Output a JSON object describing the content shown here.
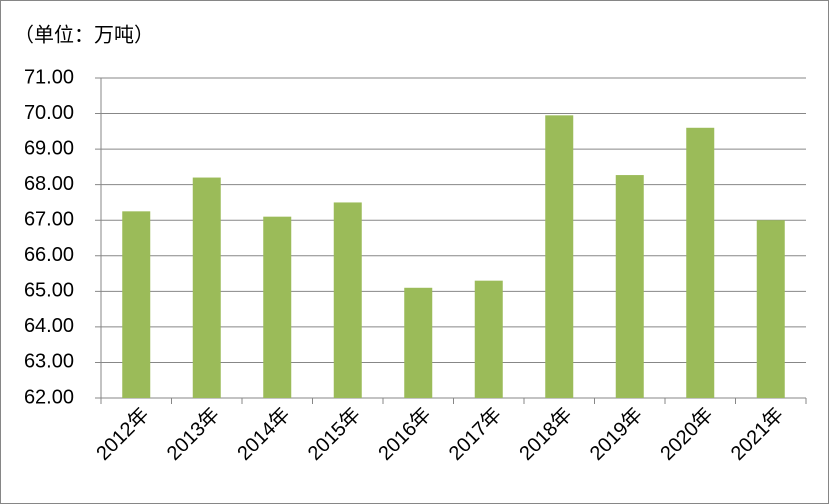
{
  "chart_data": {
    "type": "bar",
    "title": "（单位：万吨）",
    "categories": [
      "2012年",
      "2013年",
      "2014年",
      "2015年",
      "2016年",
      "2017年",
      "2018年",
      "2019年",
      "2020年",
      "2021年"
    ],
    "values": [
      67.25,
      68.2,
      67.1,
      67.5,
      65.1,
      65.3,
      69.95,
      68.27,
      69.6,
      67.0
    ],
    "color": "#9bbb59",
    "ylim": [
      62,
      71
    ],
    "yticks": [
      {
        "value": 62,
        "label": "62.00"
      },
      {
        "value": 63,
        "label": "63.00"
      },
      {
        "value": 64,
        "label": "64.00"
      },
      {
        "value": 65,
        "label": "65.00"
      },
      {
        "value": 66,
        "label": "66.00"
      },
      {
        "value": 67,
        "label": "67.00"
      },
      {
        "value": 68,
        "label": "68.00"
      },
      {
        "value": 69,
        "label": "69.00"
      },
      {
        "value": 70,
        "label": "70.00"
      },
      {
        "value": 71,
        "label": "71.00"
      }
    ],
    "grid": true
  }
}
